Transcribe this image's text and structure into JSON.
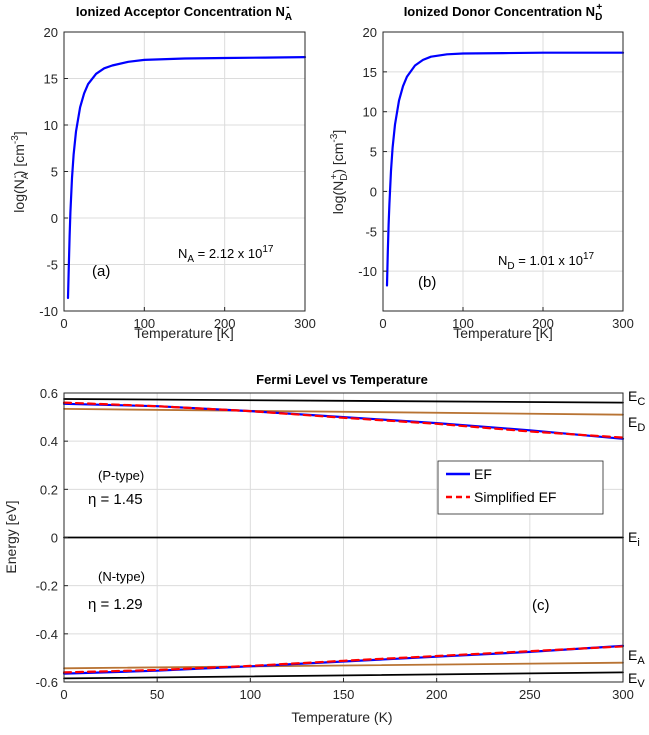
{
  "chart_data": [
    {
      "type": "line",
      "panel": "a",
      "title_main": "Ionized Acceptor Concentration N",
      "title_sub": "A",
      "title_sup": "-",
      "xlabel": "Temperature [K]",
      "ylabel_pre": "log(N",
      "ylabel_sub": "A",
      "ylabel_sup": "-",
      "ylabel_post": ") [cm",
      "ylabel_unit_sup": "-3",
      "ylabel_end": "]",
      "xlim": [
        0,
        300
      ],
      "ylim": [
        -10,
        20
      ],
      "xticks": [
        0,
        100,
        200,
        300
      ],
      "yticks": [
        -10,
        -5,
        0,
        5,
        10,
        15,
        20
      ],
      "grid": true,
      "series": [
        {
          "color": "#0000ff",
          "x": [
            5,
            6,
            7,
            8,
            10,
            12,
            15,
            20,
            25,
            30,
            40,
            50,
            60,
            80,
            100,
            150,
            200,
            250,
            300
          ],
          "y": [
            -8.6,
            -5.2,
            -2.0,
            0.6,
            4.3,
            6.8,
            9.3,
            11.9,
            13.4,
            14.4,
            15.5,
            16.1,
            16.4,
            16.8,
            17.0,
            17.15,
            17.2,
            17.25,
            17.3
          ]
        }
      ],
      "annotation_panel": "(a)",
      "annotation_conc_pre": "N",
      "annotation_conc_sub": "A",
      "annotation_conc_mid": " = 2.12 x 10",
      "annotation_conc_sup": "17"
    },
    {
      "type": "line",
      "panel": "b",
      "title_main": "Ionized Donor Concentration N",
      "title_sub": "D",
      "title_sup": "+",
      "xlabel": "Temperature [K]",
      "ylabel_pre": "log(N",
      "ylabel_sub": "D",
      "ylabel_sup": "+",
      "ylabel_post": ") [cm",
      "ylabel_unit_sup": "-3",
      "ylabel_end": "]",
      "xlim": [
        0,
        300
      ],
      "ylim": [
        -15,
        20
      ],
      "xticks": [
        0,
        100,
        200,
        300
      ],
      "yticks": [
        -15,
        -10,
        -5,
        0,
        5,
        10,
        15,
        20
      ],
      "grid": true,
      "series": [
        {
          "color": "#0000ff",
          "x": [
            5,
            6,
            7,
            8,
            10,
            12,
            15,
            20,
            25,
            30,
            40,
            50,
            60,
            80,
            100,
            150,
            200,
            250,
            300
          ],
          "y": [
            -11.8,
            -7.6,
            -4.2,
            -1.6,
            2.6,
            5.5,
            8.4,
            11.4,
            13.2,
            14.4,
            15.8,
            16.5,
            16.9,
            17.2,
            17.3,
            17.35,
            17.4,
            17.4,
            17.4
          ]
        }
      ],
      "annotation_panel": "(b)",
      "annotation_conc_pre": "N",
      "annotation_conc_sub": "D",
      "annotation_conc_mid": " = 1.01 x 10",
      "annotation_conc_sup": "17"
    },
    {
      "type": "line",
      "panel": "c",
      "title": "Fermi Level vs Temperature",
      "xlabel": "Temperature (K)",
      "ylabel": "Energy [eV]",
      "xlim": [
        0,
        300
      ],
      "ylim": [
        -0.6,
        0.6
      ],
      "xticks": [
        0,
        50,
        100,
        150,
        200,
        250,
        300
      ],
      "yticks": [
        -0.6,
        -0.4,
        -0.2,
        0,
        0.2,
        0.4,
        0.6
      ],
      "ytick_labels": [
        "-0.6",
        "-0.4",
        "-0.2",
        "0",
        "0.2",
        "0.4",
        "0.6"
      ],
      "grid": true,
      "legend_position": "right-center",
      "series": [
        {
          "role": "EC",
          "color": "#000000",
          "dashed": false,
          "x": [
            0,
            300
          ],
          "y": [
            0.575,
            0.56
          ]
        },
        {
          "role": "ED",
          "color": "#b87333",
          "dashed": false,
          "x": [
            0,
            300
          ],
          "y": [
            0.534,
            0.51
          ]
        },
        {
          "role": "Ei",
          "color": "#000000",
          "dashed": false,
          "x": [
            0,
            300
          ],
          "y": [
            0.0,
            0.0
          ]
        },
        {
          "role": "EA",
          "color": "#b87333",
          "dashed": false,
          "x": [
            0,
            300
          ],
          "y": [
            -0.543,
            -0.52
          ]
        },
        {
          "role": "EV",
          "color": "#000000",
          "dashed": false,
          "x": [
            0,
            300
          ],
          "y": [
            -0.585,
            -0.56
          ]
        },
        {
          "name": "EF",
          "color": "#0000ff",
          "dashed": false,
          "x": [
            0,
            50,
            100,
            150,
            200,
            250,
            300
          ],
          "y": [
            0.555,
            0.545,
            0.525,
            0.5,
            0.475,
            0.445,
            0.41
          ]
        },
        {
          "name": "Simplified EF",
          "color": "#ff0000",
          "dashed": true,
          "x": [
            0,
            50,
            100,
            150,
            200,
            250,
            300
          ],
          "y": [
            0.56,
            0.545,
            0.525,
            0.497,
            0.472,
            0.44,
            0.415
          ]
        },
        {
          "role": "EF_low",
          "color": "#0000ff",
          "dashed": false,
          "x": [
            0,
            50,
            100,
            150,
            200,
            250,
            300
          ],
          "y": [
            -0.565,
            -0.553,
            -0.535,
            -0.515,
            -0.495,
            -0.475,
            -0.45
          ]
        },
        {
          "role": "SEF_low",
          "color": "#ff0000",
          "dashed": true,
          "x": [
            0,
            50,
            100,
            150,
            200,
            250,
            300
          ],
          "y": [
            -0.56,
            -0.55,
            -0.533,
            -0.512,
            -0.492,
            -0.472,
            -0.452
          ]
        }
      ],
      "band_labels": {
        "EC_main": "E",
        "EC_sub": "C",
        "ED_main": "E",
        "ED_sub": "D",
        "Ei_main": "E",
        "Ei_sub": "i",
        "EA_main": "E",
        "EA_sub": "A",
        "EV_main": "E",
        "EV_sub": "V"
      },
      "annotations": {
        "p_type": "(P-type)",
        "eta_p": "η = 1.45",
        "n_type": "(N-type)",
        "eta_n": "η = 1.29",
        "panel": "(c)"
      }
    }
  ]
}
